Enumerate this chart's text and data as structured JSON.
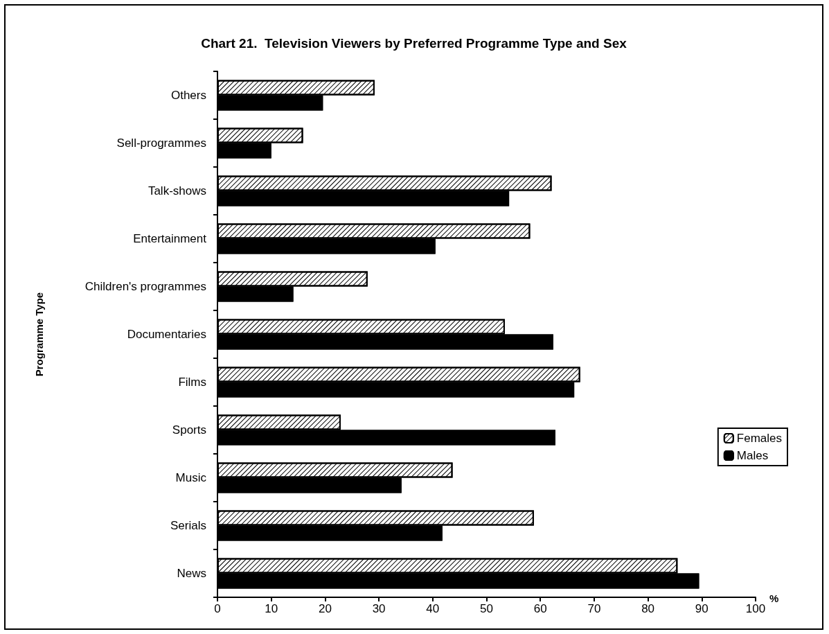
{
  "chart_data": {
    "type": "bar",
    "orientation": "horizontal",
    "title": "Chart 21.  Television Viewers by Preferred Programme Type and Sex",
    "xlabel": "%",
    "ylabel": "Programme Type",
    "categories": [
      "Others",
      "Sell-programmes",
      "Talk-shows",
      "Entertainment",
      "Children's programmes",
      "Documentaries",
      "Films",
      "Sports",
      "Music",
      "Serials",
      "News"
    ],
    "series": [
      {
        "name": "Females",
        "color": "#ffffff",
        "values": [
          29.2,
          15.9,
          62.1,
          58.1,
          27.9,
          53.4,
          67.4,
          22.9,
          43.7,
          58.8,
          85.5
        ]
      },
      {
        "name": "Males",
        "color": "#000000",
        "values": [
          19.6,
          10,
          54.2,
          40.5,
          14.1,
          62.4,
          66.3,
          62.8,
          34.2,
          41.8,
          89.5
        ]
      }
    ],
    "xlim": [
      0,
      100
    ],
    "xticks": [
      0,
      10,
      20,
      30,
      40,
      50,
      60,
      70,
      80,
      90,
      100
    ],
    "grid": false,
    "legend": "right"
  }
}
